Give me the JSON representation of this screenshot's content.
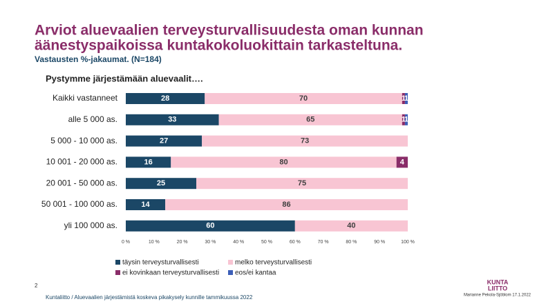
{
  "chart_data": {
    "type": "stacked_barh",
    "title": [
      "Arviot aluevaalien terveysturvallisuudesta oman kunnan",
      "äänestyspaikoissa kuntakokoluokittain tarkasteltuna."
    ],
    "subtitle": "Vastausten %-jakaumat. (N=184)",
    "chart_title": "Pystymme järjestämään aluevaalit….",
    "categories": [
      "Kaikki vastanneet",
      "alle 5 000 as.",
      "5 000 - 10 000 as.",
      "10 001 - 20 000 as.",
      "20 001 - 50 000 as.",
      "50 001 - 100 000 as.",
      "yli 100 000 as."
    ],
    "series": [
      {
        "name": "täysin terveysturvallisesti",
        "color": "#1b4766",
        "label_color": "#ffffff",
        "values": [
          28,
          33,
          27,
          16,
          25,
          14,
          60
        ]
      },
      {
        "name": "melko terveysturvallisesti",
        "color": "#f8c5d3",
        "label_color": "#404040",
        "values": [
          70,
          65,
          73,
          80,
          75,
          86,
          40
        ]
      },
      {
        "name": "ei kovinkaan terveysturvallisesti",
        "color": "#8a2d69",
        "label_color": "#ffffff",
        "values": [
          1,
          1,
          0,
          4,
          0,
          0,
          0
        ]
      },
      {
        "name": "eos/ei kantaa",
        "color": "#3d5fb8",
        "label_color": "#ffffff",
        "values": [
          1,
          1,
          0,
          0,
          0,
          0,
          0
        ]
      }
    ],
    "xlim": [
      0,
      100
    ],
    "xticks": [
      {
        "value": 0,
        "label": "0 %"
      },
      {
        "value": 10,
        "label": "10 %"
      },
      {
        "value": 20,
        "label": "20 %"
      },
      {
        "value": 30,
        "label": "30 %"
      },
      {
        "value": 40,
        "label": "40 %"
      },
      {
        "value": 50,
        "label": "50 %"
      },
      {
        "value": 60,
        "label": "60 %"
      },
      {
        "value": 70,
        "label": "70 %"
      },
      {
        "value": 80,
        "label": "80 %"
      },
      {
        "value": 90,
        "label": "90 %"
      },
      {
        "value": 100,
        "label": "100 %"
      }
    ],
    "legend": "bottom"
  },
  "footer": {
    "page": "2",
    "source": "Kuntaliitto / Aluevaalien järjestämistä koskeva pikakysely kunnille tammikuussa 2022",
    "author": "Marianne Pekola-Sjöblom 17.1.2022",
    "logo": [
      "KUNTA",
      "LIITTO"
    ]
  }
}
